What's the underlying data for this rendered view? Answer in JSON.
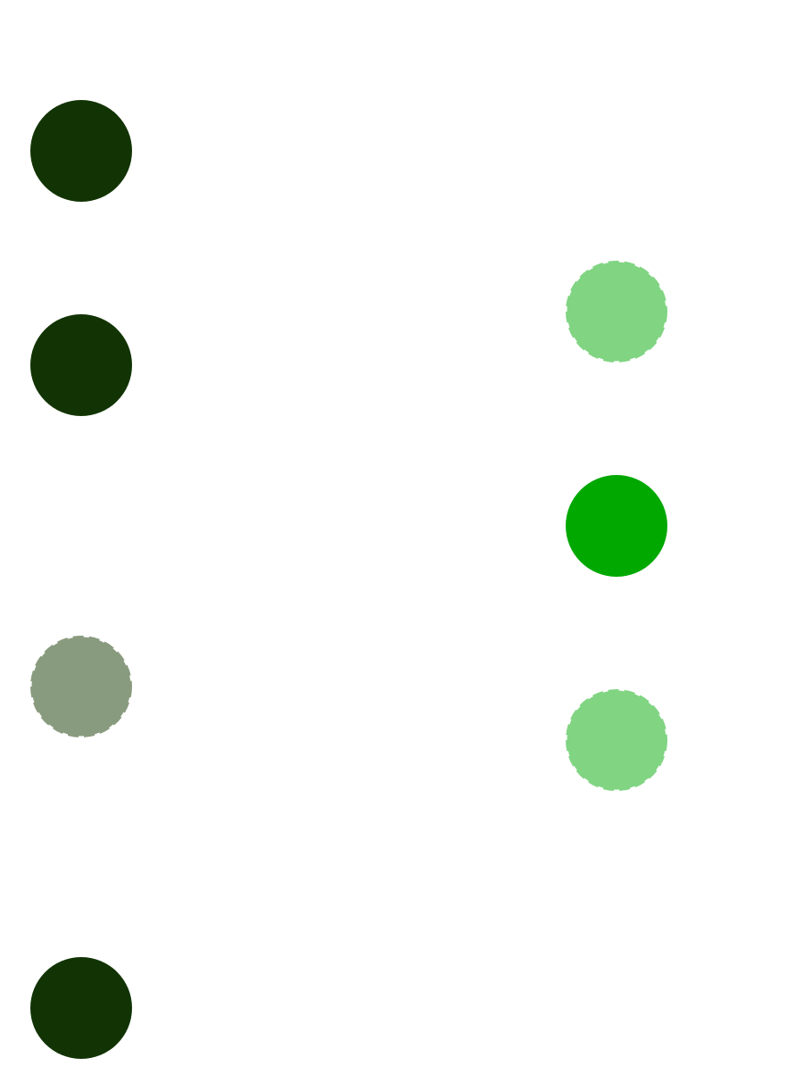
{
  "colors": {
    "dark_green": "#123404",
    "muted_green": "#899b7e",
    "bright_green": "#00a800",
    "light_green": "#80d482"
  },
  "nodes": [
    {
      "id": "left-1",
      "column": "left",
      "style": "solid",
      "color": "dark_green"
    },
    {
      "id": "left-2",
      "column": "left",
      "style": "solid",
      "color": "dark_green"
    },
    {
      "id": "left-3",
      "column": "left",
      "style": "dashed",
      "color": "muted_green"
    },
    {
      "id": "left-4",
      "column": "left",
      "style": "solid",
      "color": "dark_green"
    },
    {
      "id": "right-1",
      "column": "right",
      "style": "dashed",
      "color": "light_green"
    },
    {
      "id": "right-2",
      "column": "right",
      "style": "solid",
      "color": "bright_green"
    },
    {
      "id": "right-3",
      "column": "right",
      "style": "dashed",
      "color": "light_green"
    }
  ]
}
